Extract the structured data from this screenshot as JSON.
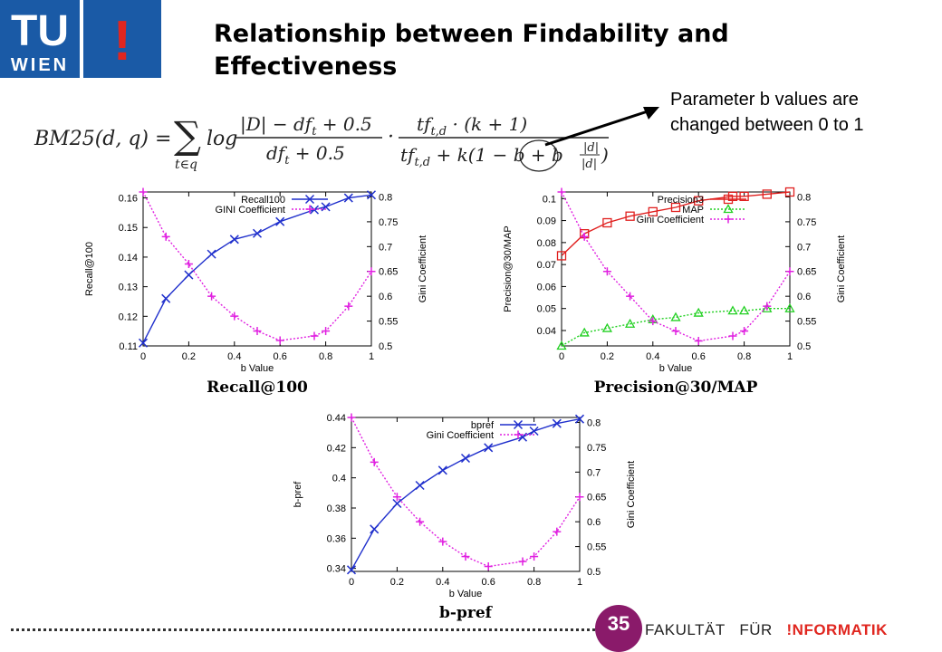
{
  "logo": {
    "text_top": "TU",
    "text_bottom": "WIEN",
    "mark": "!"
  },
  "slide": {
    "title_line1": "Relationship between Findability and",
    "title_line2": "Effectiveness",
    "formula_lhs": "BM25(d, q) =",
    "annotation_line1": "Parameter b values are",
    "annotation_line2": "changed between 0 to 1",
    "page_number": "35",
    "footer_word1": "FAKULTÄT",
    "footer_word2": "FÜR",
    "footer_word3": "!NFORMATIK"
  },
  "colors": {
    "blue": "#1f2fcc",
    "magenta": "#e020e0",
    "red": "#e0201f",
    "green": "#22d022",
    "logo_blue": "#1a5aa6"
  },
  "chart_data": [
    {
      "type": "line",
      "caption": "Recall@100",
      "xlabel": "b Value",
      "ylabel": "Recall@100",
      "y2label": "Gini Coefficient",
      "xlim": [
        0,
        1
      ],
      "ylim": [
        0.11,
        0.162
      ],
      "y2lim": [
        0.5,
        0.81
      ],
      "xticks": [
        "0",
        "0.2",
        "0.4",
        "0.6",
        "0.8",
        "1"
      ],
      "yticks": [
        "0.11",
        "0.12",
        "0.13",
        "0.14",
        "0.15",
        "0.16"
      ],
      "y2ticks": [
        "0.5",
        "0.55",
        "0.6",
        "0.65",
        "0.7",
        "0.75",
        "0.8"
      ],
      "legend_position": "top-right",
      "series": [
        {
          "name": "Recall100",
          "axis": "left",
          "marker": "x",
          "color": "#1f2fcc",
          "x": [
            0,
            0.1,
            0.2,
            0.3,
            0.4,
            0.5,
            0.6,
            0.75,
            0.8,
            0.9,
            1
          ],
          "y": [
            0.111,
            0.126,
            0.134,
            0.141,
            0.146,
            0.148,
            0.152,
            0.156,
            0.157,
            0.16,
            0.161
          ]
        },
        {
          "name": "GINI Coefficient",
          "axis": "right",
          "marker": "+",
          "color": "#e020e0",
          "x": [
            0,
            0.1,
            0.2,
            0.3,
            0.4,
            0.5,
            0.6,
            0.75,
            0.8,
            0.9,
            1
          ],
          "y": [
            0.81,
            0.72,
            0.665,
            0.6,
            0.56,
            0.53,
            0.511,
            0.52,
            0.53,
            0.58,
            0.65
          ]
        }
      ]
    },
    {
      "type": "line",
      "caption": "Precision@30/MAP",
      "xlabel": "b Value",
      "ylabel": "Precision@30/MAP",
      "y2label": "Gini Coefficient",
      "xlim": [
        0,
        1
      ],
      "ylim": [
        0.033,
        0.103
      ],
      "y2lim": [
        0.5,
        0.81
      ],
      "xticks": [
        "0",
        "0.2",
        "0.4",
        "0.6",
        "0.8",
        "1"
      ],
      "yticks": [
        "0.04",
        "0.05",
        "0.06",
        "0.07",
        "0.08",
        "0.09",
        "0.1"
      ],
      "y2ticks": [
        "0.5",
        "0.55",
        "0.6",
        "0.65",
        "0.7",
        "0.75",
        "0.8"
      ],
      "legend_position": "top-right",
      "series": [
        {
          "name": "Precision3",
          "axis": "left",
          "marker": "square",
          "color": "#e0201f",
          "x": [
            0,
            0.1,
            0.2,
            0.3,
            0.4,
            0.5,
            0.6,
            0.75,
            0.8,
            0.9,
            1
          ],
          "y": [
            0.074,
            0.084,
            0.089,
            0.092,
            0.094,
            0.096,
            0.099,
            0.101,
            0.101,
            0.102,
            0.103
          ]
        },
        {
          "name": "MAP",
          "axis": "left",
          "marker": "triangle",
          "color": "#22d022",
          "x": [
            0,
            0.1,
            0.2,
            0.3,
            0.4,
            0.5,
            0.6,
            0.75,
            0.8,
            0.9,
            1
          ],
          "y": [
            0.033,
            0.039,
            0.041,
            0.043,
            0.045,
            0.046,
            0.048,
            0.049,
            0.049,
            0.05,
            0.05
          ]
        },
        {
          "name": "Gini Coefficient",
          "axis": "right",
          "marker": "+",
          "color": "#e020e0",
          "x": [
            0,
            0.1,
            0.2,
            0.3,
            0.4,
            0.5,
            0.6,
            0.75,
            0.8,
            0.9,
            1
          ],
          "y": [
            0.81,
            0.72,
            0.65,
            0.6,
            0.55,
            0.53,
            0.51,
            0.52,
            0.53,
            0.58,
            0.65
          ]
        }
      ]
    },
    {
      "type": "line",
      "caption": "b-pref",
      "xlabel": "b Value",
      "ylabel": "b-pref",
      "y2label": "Gini Coefficient",
      "xlim": [
        0,
        1
      ],
      "ylim": [
        0.338,
        0.44
      ],
      "y2lim": [
        0.5,
        0.81
      ],
      "xticks": [
        "0",
        "0.2",
        "0.4",
        "0.6",
        "0.8",
        "1"
      ],
      "yticks": [
        "0.34",
        "0.36",
        "0.38",
        "0.4",
        "0.42",
        "0.44"
      ],
      "y2ticks": [
        "0.5",
        "0.55",
        "0.6",
        "0.65",
        "0.7",
        "0.75",
        "0.8"
      ],
      "legend_position": "top-right",
      "series": [
        {
          "name": "bpref",
          "axis": "left",
          "marker": "x",
          "color": "#1f2fcc",
          "x": [
            0,
            0.1,
            0.2,
            0.3,
            0.4,
            0.5,
            0.6,
            0.75,
            0.8,
            0.9,
            1
          ],
          "y": [
            0.339,
            0.366,
            0.383,
            0.395,
            0.405,
            0.413,
            0.42,
            0.427,
            0.431,
            0.436,
            0.439
          ]
        },
        {
          "name": "Gini Coefficient",
          "axis": "right",
          "marker": "+",
          "color": "#e020e0",
          "x": [
            0,
            0.1,
            0.2,
            0.3,
            0.4,
            0.5,
            0.6,
            0.75,
            0.8,
            0.9,
            1
          ],
          "y": [
            0.81,
            0.72,
            0.65,
            0.6,
            0.56,
            0.53,
            0.51,
            0.52,
            0.53,
            0.58,
            0.65
          ]
        }
      ]
    }
  ]
}
